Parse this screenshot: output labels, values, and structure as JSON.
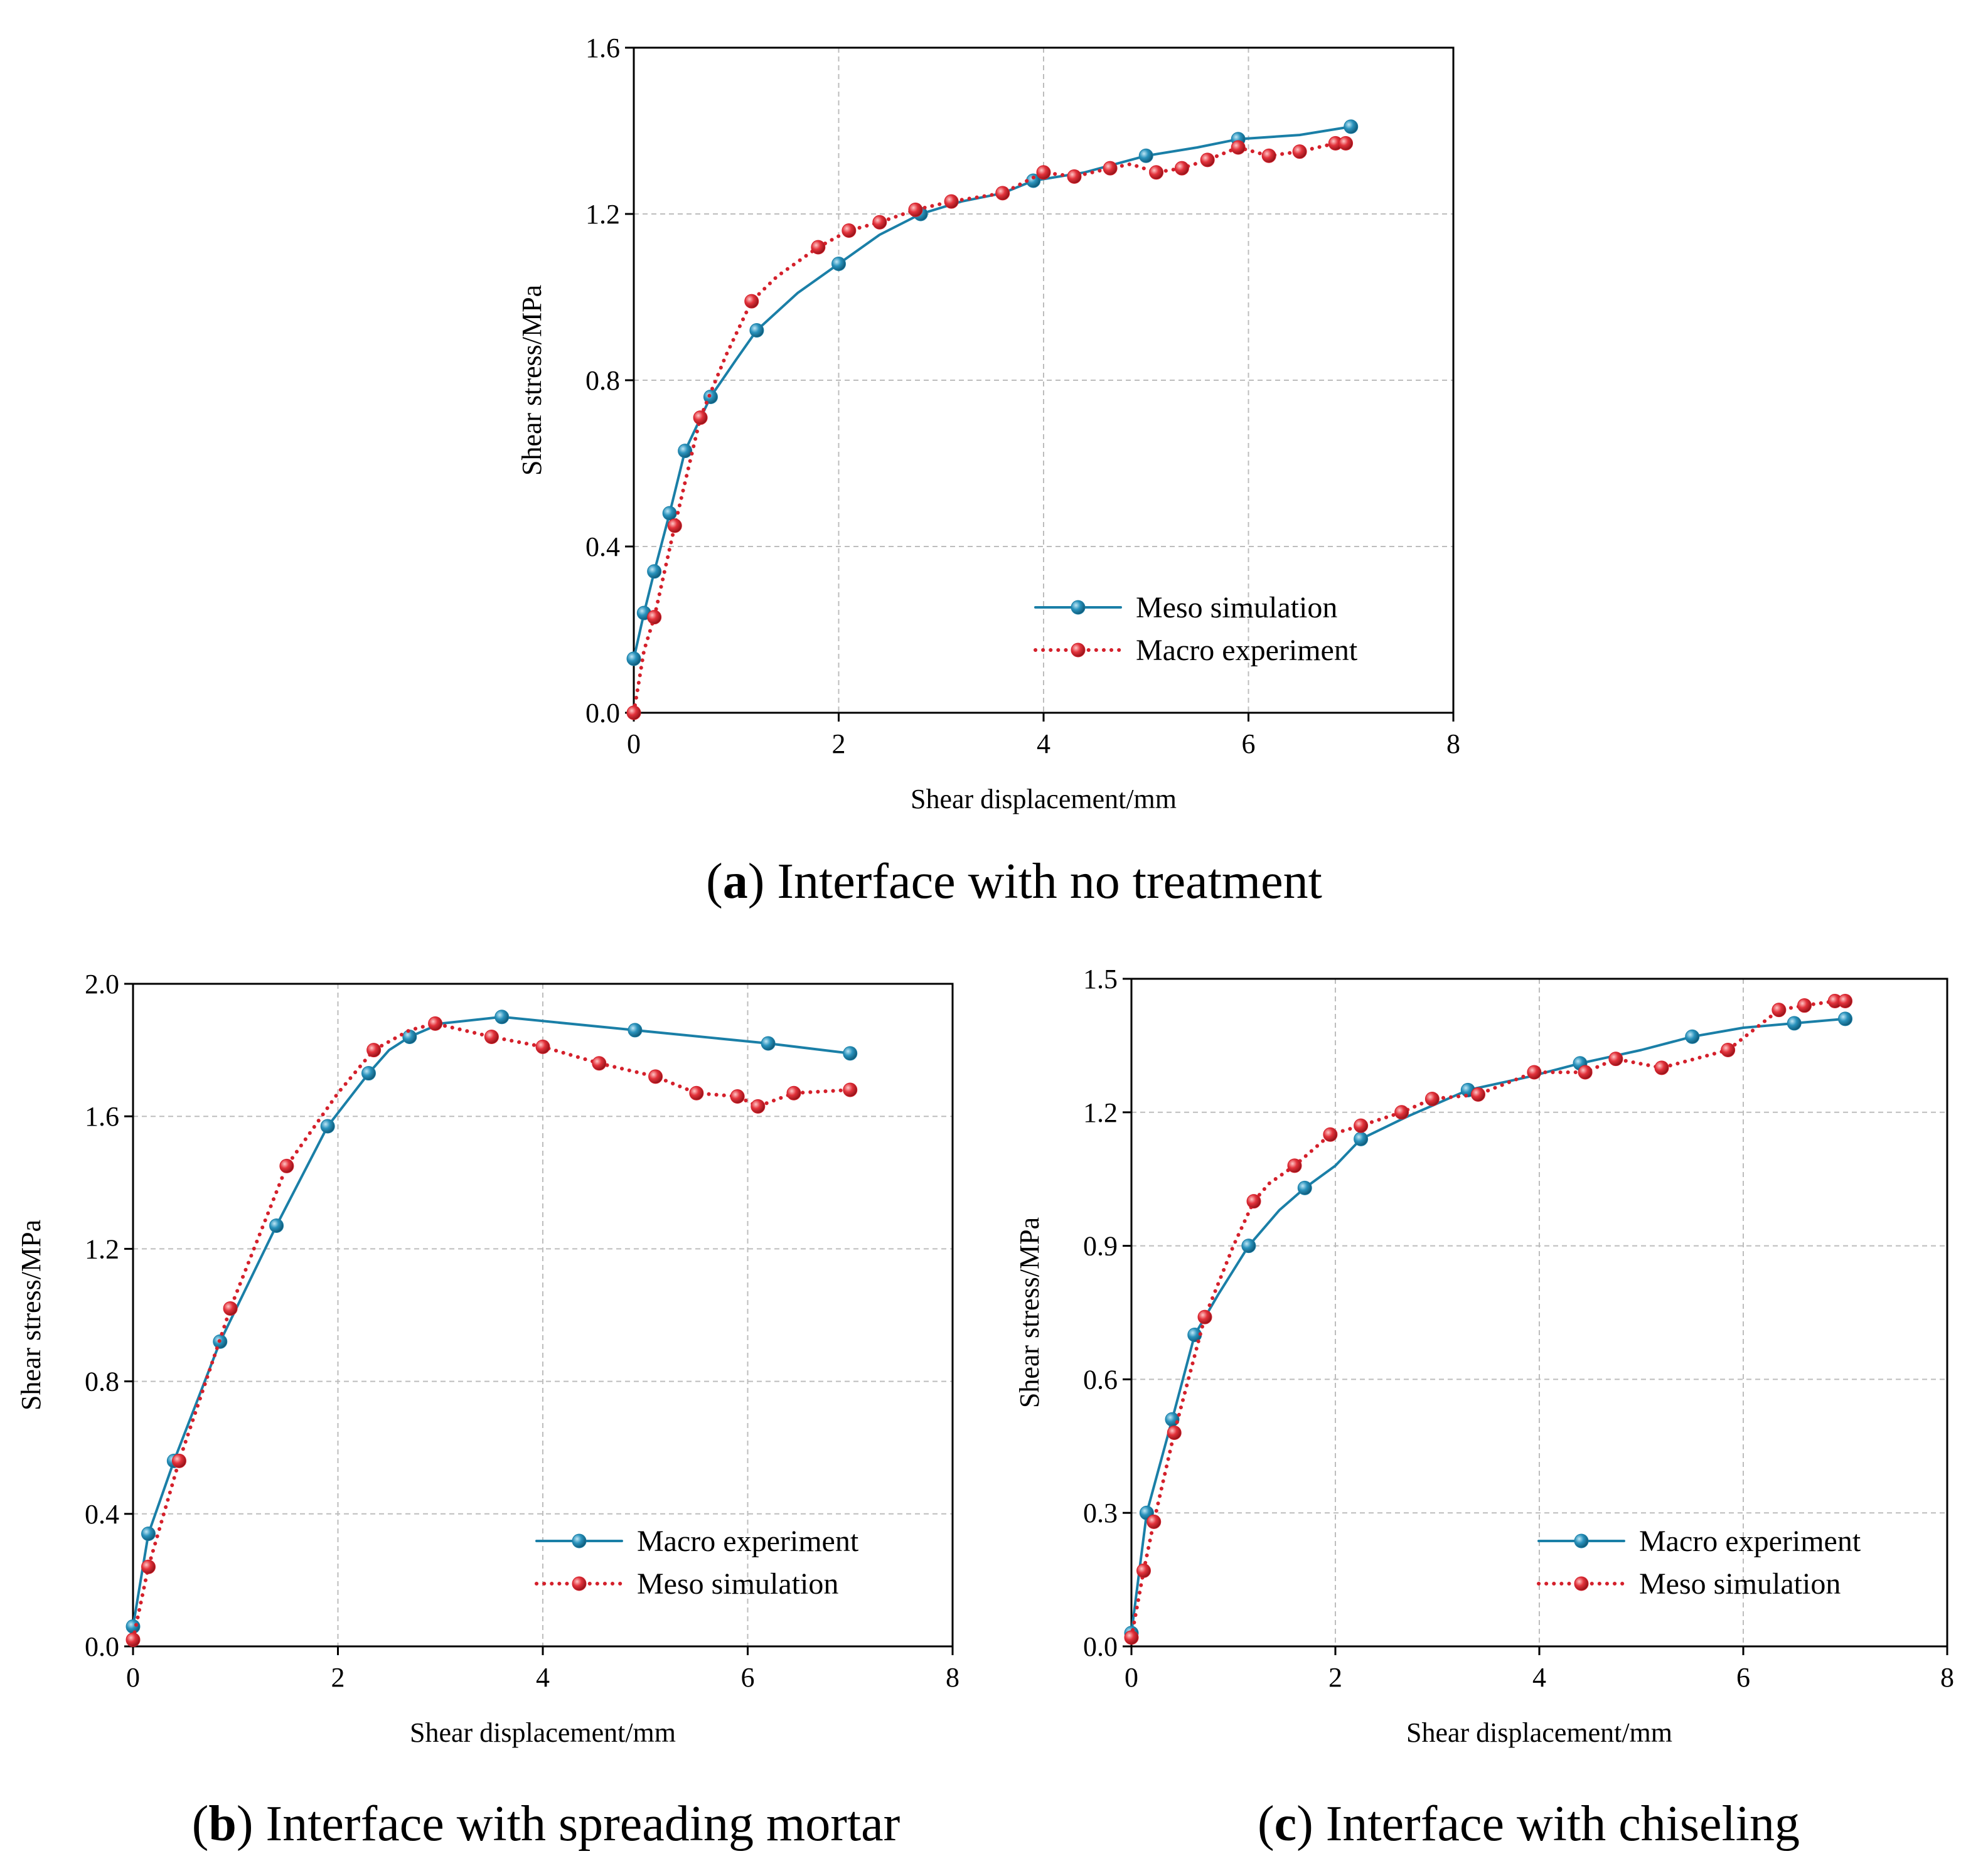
{
  "colors": {
    "teal": "#1a7fa7",
    "red": "#d4202b",
    "grid": "#bdbdbd",
    "axis": "#000000"
  },
  "chart_data": [
    {
      "id": "a",
      "type": "line",
      "xlabel": "Shear displacement/mm",
      "ylabel": "Shear stress/MPa",
      "xlim": [
        0,
        8
      ],
      "ylim": [
        0,
        1.6
      ],
      "xticks": [
        "0",
        "2",
        "4",
        "6",
        "8"
      ],
      "yticks": [
        "0.0",
        "0.4",
        "0.8",
        "1.2",
        "1.6"
      ],
      "grid": true,
      "legend_position": "bottom-right",
      "caption": {
        "letter": "a",
        "text": "Interface with no treatment"
      },
      "series": [
        {
          "name": "Meso simulation",
          "style": "solid",
          "color": "#1a7fa7",
          "line": [
            [
              0.0,
              0.13
            ],
            [
              0.1,
              0.24
            ],
            [
              0.2,
              0.34
            ],
            [
              0.35,
              0.48
            ],
            [
              0.5,
              0.63
            ],
            [
              0.75,
              0.76
            ],
            [
              1.0,
              0.85
            ],
            [
              1.2,
              0.92
            ],
            [
              1.6,
              1.01
            ],
            [
              2.0,
              1.08
            ],
            [
              2.4,
              1.15
            ],
            [
              2.8,
              1.2
            ],
            [
              3.2,
              1.23
            ],
            [
              3.6,
              1.25
            ],
            [
              3.9,
              1.28
            ],
            [
              4.4,
              1.3
            ],
            [
              5.0,
              1.34
            ],
            [
              5.5,
              1.36
            ],
            [
              5.9,
              1.38
            ],
            [
              6.5,
              1.39
            ],
            [
              7.0,
              1.41
            ]
          ],
          "markers": [
            [
              0.0,
              0.13
            ],
            [
              0.1,
              0.24
            ],
            [
              0.2,
              0.34
            ],
            [
              0.35,
              0.48
            ],
            [
              0.5,
              0.63
            ],
            [
              0.75,
              0.76
            ],
            [
              1.2,
              0.92
            ],
            [
              2.0,
              1.08
            ],
            [
              2.8,
              1.2
            ],
            [
              3.9,
              1.28
            ],
            [
              5.0,
              1.34
            ],
            [
              5.9,
              1.38
            ],
            [
              7.0,
              1.41
            ]
          ]
        },
        {
          "name": "Macro experiment",
          "style": "dotted",
          "color": "#d4202b",
          "line": [
            [
              0.0,
              0.0
            ],
            [
              0.1,
              0.15
            ],
            [
              0.2,
              0.23
            ],
            [
              0.4,
              0.45
            ],
            [
              0.65,
              0.71
            ],
            [
              0.9,
              0.86
            ],
            [
              1.15,
              0.99
            ],
            [
              1.4,
              1.05
            ],
            [
              1.8,
              1.12
            ],
            [
              2.1,
              1.16
            ],
            [
              2.4,
              1.18
            ],
            [
              2.75,
              1.21
            ],
            [
              3.1,
              1.23
            ],
            [
              3.6,
              1.25
            ],
            [
              4.0,
              1.3
            ],
            [
              4.3,
              1.29
            ],
            [
              4.65,
              1.31
            ],
            [
              4.85,
              1.32
            ],
            [
              5.1,
              1.3
            ],
            [
              5.35,
              1.31
            ],
            [
              5.6,
              1.33
            ],
            [
              5.9,
              1.36
            ],
            [
              6.2,
              1.34
            ],
            [
              6.5,
              1.35
            ],
            [
              6.85,
              1.37
            ],
            [
              6.95,
              1.37
            ]
          ],
          "markers": [
            [
              0.0,
              0.0
            ],
            [
              0.2,
              0.23
            ],
            [
              0.4,
              0.45
            ],
            [
              0.65,
              0.71
            ],
            [
              1.15,
              0.99
            ],
            [
              1.8,
              1.12
            ],
            [
              2.1,
              1.16
            ],
            [
              2.4,
              1.18
            ],
            [
              2.75,
              1.21
            ],
            [
              3.1,
              1.23
            ],
            [
              3.6,
              1.25
            ],
            [
              4.0,
              1.3
            ],
            [
              4.3,
              1.29
            ],
            [
              4.65,
              1.31
            ],
            [
              5.1,
              1.3
            ],
            [
              5.35,
              1.31
            ],
            [
              5.6,
              1.33
            ],
            [
              5.9,
              1.36
            ],
            [
              6.2,
              1.34
            ],
            [
              6.5,
              1.35
            ],
            [
              6.85,
              1.37
            ],
            [
              6.95,
              1.37
            ]
          ]
        }
      ]
    },
    {
      "id": "b",
      "type": "line",
      "xlabel": "Shear displacement/mm",
      "ylabel": "Shear stress/MPa",
      "xlim": [
        0,
        8
      ],
      "ylim": [
        0,
        2.0
      ],
      "xticks": [
        "0",
        "2",
        "4",
        "6",
        "8"
      ],
      "yticks": [
        "0.0",
        "0.4",
        "0.8",
        "1.2",
        "1.6",
        "2.0"
      ],
      "grid": true,
      "legend_position": "bottom-right",
      "caption": {
        "letter": "b",
        "text": "Interface with spreading mortar"
      },
      "series": [
        {
          "name": "Macro experiment",
          "style": "solid",
          "color": "#1a7fa7",
          "line": [
            [
              0.0,
              0.06
            ],
            [
              0.15,
              0.34
            ],
            [
              0.4,
              0.56
            ],
            [
              0.85,
              0.92
            ],
            [
              1.4,
              1.27
            ],
            [
              1.9,
              1.57
            ],
            [
              2.3,
              1.73
            ],
            [
              2.5,
              1.8
            ],
            [
              2.7,
              1.84
            ],
            [
              3.0,
              1.88
            ],
            [
              3.6,
              1.9
            ],
            [
              4.9,
              1.86
            ],
            [
              6.2,
              1.82
            ],
            [
              7.0,
              1.79
            ]
          ],
          "markers": [
            [
              0.0,
              0.06
            ],
            [
              0.15,
              0.34
            ],
            [
              0.4,
              0.56
            ],
            [
              0.85,
              0.92
            ],
            [
              1.4,
              1.27
            ],
            [
              1.9,
              1.57
            ],
            [
              2.3,
              1.73
            ],
            [
              2.7,
              1.84
            ],
            [
              3.6,
              1.9
            ],
            [
              4.9,
              1.86
            ],
            [
              6.2,
              1.82
            ],
            [
              7.0,
              1.79
            ]
          ]
        },
        {
          "name": "Meso simulation",
          "style": "dotted",
          "color": "#d4202b",
          "line": [
            [
              0.0,
              0.02
            ],
            [
              0.15,
              0.24
            ],
            [
              0.45,
              0.56
            ],
            [
              0.95,
              1.02
            ],
            [
              1.5,
              1.45
            ],
            [
              2.0,
              1.67
            ],
            [
              2.35,
              1.8
            ],
            [
              2.7,
              1.86
            ],
            [
              2.95,
              1.88
            ],
            [
              3.5,
              1.84
            ],
            [
              4.0,
              1.81
            ],
            [
              4.55,
              1.76
            ],
            [
              5.1,
              1.72
            ],
            [
              5.5,
              1.67
            ],
            [
              5.9,
              1.66
            ],
            [
              6.1,
              1.63
            ],
            [
              6.45,
              1.67
            ],
            [
              7.0,
              1.68
            ]
          ],
          "markers": [
            [
              0.0,
              0.02
            ],
            [
              0.15,
              0.24
            ],
            [
              0.45,
              0.56
            ],
            [
              0.95,
              1.02
            ],
            [
              1.5,
              1.45
            ],
            [
              2.35,
              1.8
            ],
            [
              2.95,
              1.88
            ],
            [
              3.5,
              1.84
            ],
            [
              4.0,
              1.81
            ],
            [
              4.55,
              1.76
            ],
            [
              5.1,
              1.72
            ],
            [
              5.5,
              1.67
            ],
            [
              5.9,
              1.66
            ],
            [
              6.1,
              1.63
            ],
            [
              6.45,
              1.67
            ],
            [
              7.0,
              1.68
            ]
          ]
        }
      ]
    },
    {
      "id": "c",
      "type": "line",
      "xlabel": "Shear displacement/mm",
      "ylabel": "Shear stress/MPa",
      "xlim": [
        0,
        8
      ],
      "ylim": [
        0,
        1.5
      ],
      "xticks": [
        "0",
        "2",
        "4",
        "6",
        "8"
      ],
      "yticks": [
        "0.0",
        "0.3",
        "0.6",
        "0.9",
        "1.2",
        "1.5"
      ],
      "grid": true,
      "legend_position": "bottom-right",
      "caption": {
        "letter": "c",
        "text": "Interface with chiseling"
      },
      "series": [
        {
          "name": "Macro experiment",
          "style": "solid",
          "color": "#1a7fa7",
          "line": [
            [
              0.0,
              0.03
            ],
            [
              0.15,
              0.3
            ],
            [
              0.4,
              0.51
            ],
            [
              0.62,
              0.7
            ],
            [
              0.85,
              0.79
            ],
            [
              1.15,
              0.9
            ],
            [
              1.45,
              0.98
            ],
            [
              1.7,
              1.03
            ],
            [
              2.0,
              1.08
            ],
            [
              2.25,
              1.14
            ],
            [
              2.7,
              1.19
            ],
            [
              3.3,
              1.25
            ],
            [
              3.9,
              1.28
            ],
            [
              4.4,
              1.31
            ],
            [
              5.0,
              1.34
            ],
            [
              5.5,
              1.37
            ],
            [
              6.0,
              1.39
            ],
            [
              6.5,
              1.4
            ],
            [
              7.0,
              1.41
            ]
          ],
          "markers": [
            [
              0.0,
              0.03
            ],
            [
              0.15,
              0.3
            ],
            [
              0.4,
              0.51
            ],
            [
              0.62,
              0.7
            ],
            [
              1.15,
              0.9
            ],
            [
              1.7,
              1.03
            ],
            [
              2.25,
              1.14
            ],
            [
              3.3,
              1.25
            ],
            [
              4.4,
              1.31
            ],
            [
              5.5,
              1.37
            ],
            [
              6.5,
              1.4
            ],
            [
              7.0,
              1.41
            ]
          ]
        },
        {
          "name": "Meso simulation",
          "style": "dotted",
          "color": "#d4202b",
          "line": [
            [
              0.0,
              0.02
            ],
            [
              0.12,
              0.17
            ],
            [
              0.22,
              0.28
            ],
            [
              0.42,
              0.48
            ],
            [
              0.72,
              0.74
            ],
            [
              1.0,
              0.9
            ],
            [
              1.2,
              1.0
            ],
            [
              1.35,
              1.04
            ],
            [
              1.6,
              1.08
            ],
            [
              1.95,
              1.15
            ],
            [
              2.25,
              1.17
            ],
            [
              2.65,
              1.2
            ],
            [
              2.95,
              1.23
            ],
            [
              3.4,
              1.24
            ],
            [
              3.95,
              1.29
            ],
            [
              4.45,
              1.29
            ],
            [
              4.75,
              1.32
            ],
            [
              5.2,
              1.3
            ],
            [
              5.85,
              1.34
            ],
            [
              6.35,
              1.43
            ],
            [
              6.6,
              1.44
            ],
            [
              6.9,
              1.45
            ],
            [
              7.0,
              1.45
            ]
          ],
          "markers": [
            [
              0.0,
              0.02
            ],
            [
              0.12,
              0.17
            ],
            [
              0.22,
              0.28
            ],
            [
              0.42,
              0.48
            ],
            [
              0.72,
              0.74
            ],
            [
              1.2,
              1.0
            ],
            [
              1.6,
              1.08
            ],
            [
              1.95,
              1.15
            ],
            [
              2.25,
              1.17
            ],
            [
              2.65,
              1.2
            ],
            [
              2.95,
              1.23
            ],
            [
              3.4,
              1.24
            ],
            [
              3.95,
              1.29
            ],
            [
              4.45,
              1.29
            ],
            [
              4.75,
              1.32
            ],
            [
              5.2,
              1.3
            ],
            [
              5.85,
              1.34
            ],
            [
              6.35,
              1.43
            ],
            [
              6.6,
              1.44
            ],
            [
              6.9,
              1.45
            ],
            [
              7.0,
              1.45
            ]
          ]
        }
      ]
    }
  ]
}
